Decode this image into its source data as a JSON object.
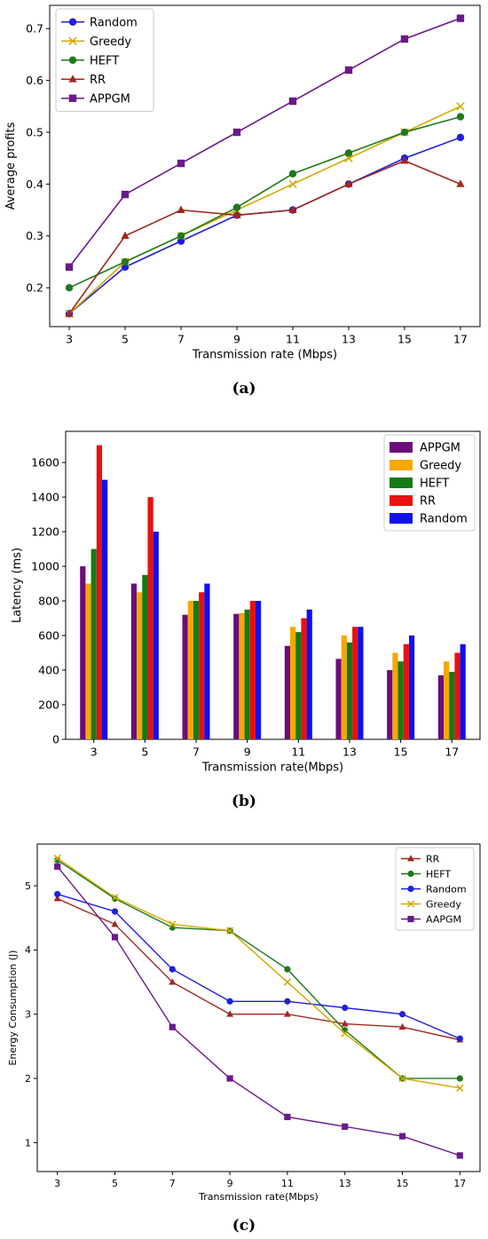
{
  "captions": [
    "(a)",
    "(b)",
    "(c)"
  ],
  "chart_data": [
    {
      "type": "line",
      "x": [
        3,
        5,
        7,
        9,
        11,
        13,
        15,
        17
      ],
      "xlabel": "Transmission rate (Mbps)",
      "ylabel": "Average profits",
      "xticks": [
        "3",
        "5",
        "7",
        "9",
        "11",
        "13",
        "15",
        "17"
      ],
      "yticks": [
        "0.2",
        "0.3",
        "0.4",
        "0.5",
        "0.6",
        "0.7"
      ],
      "ylim": [
        0.125,
        0.745
      ],
      "grid": false,
      "legend_position": "top-left",
      "series": [
        {
          "name": "Random",
          "color": "#1f1fe0",
          "marker": "circle",
          "values": [
            0.15,
            0.24,
            0.29,
            0.34,
            0.35,
            0.4,
            0.45,
            0.49
          ]
        },
        {
          "name": "Greedy",
          "color": "#d4a800",
          "marker": "x",
          "values": [
            0.15,
            0.25,
            0.3,
            0.35,
            0.4,
            0.45,
            0.5,
            0.55
          ]
        },
        {
          "name": "HEFT",
          "color": "#1e7a1e",
          "marker": "circle",
          "values": [
            0.2,
            0.25,
            0.3,
            0.355,
            0.42,
            0.46,
            0.5,
            0.53
          ]
        },
        {
          "name": "RR",
          "color": "#a0281e",
          "marker": "triangle",
          "values": [
            0.15,
            0.3,
            0.35,
            0.34,
            0.35,
            0.4,
            0.445,
            0.4
          ]
        },
        {
          "name": "APPGM",
          "color": "#6a1a8a",
          "marker": "square",
          "values": [
            0.24,
            0.38,
            0.44,
            0.5,
            0.56,
            0.62,
            0.68,
            0.72
          ]
        }
      ]
    },
    {
      "type": "bar",
      "categories": [
        "3",
        "5",
        "7",
        "9",
        "11",
        "13",
        "15",
        "17"
      ],
      "xlabel": "Transmission rate(Mbps)",
      "ylabel": "Latency (ms)",
      "yticks": [
        "0",
        "200",
        "400",
        "600",
        "800",
        "1000",
        "1200",
        "1400",
        "1600"
      ],
      "ylim": [
        0,
        1780
      ],
      "grid": false,
      "legend_position": "top-right",
      "series": [
        {
          "name": "APPGM",
          "color": "#6a0d7a",
          "values": [
            1000,
            900,
            720,
            725,
            540,
            465,
            400,
            370
          ]
        },
        {
          "name": "Greedy",
          "color": "#f5a800",
          "values": [
            900,
            850,
            800,
            730,
            650,
            600,
            500,
            450
          ]
        },
        {
          "name": "HEFT",
          "color": "#157a15",
          "values": [
            1100,
            950,
            800,
            750,
            620,
            560,
            450,
            390
          ]
        },
        {
          "name": "RR",
          "color": "#e81010",
          "values": [
            1700,
            1400,
            850,
            800,
            700,
            650,
            550,
            500
          ]
        },
        {
          "name": "Random",
          "color": "#1010ee",
          "values": [
            1500,
            1200,
            900,
            800,
            750,
            650,
            600,
            550
          ]
        }
      ]
    },
    {
      "type": "line",
      "x": [
        3,
        5,
        7,
        9,
        11,
        13,
        15,
        17
      ],
      "xlabel": "Transmission rate(Mbps)",
      "ylabel": "Energy Consumption (J)",
      "xticks": [
        "3",
        "5",
        "7",
        "9",
        "11",
        "13",
        "15",
        "17"
      ],
      "yticks": [
        "1",
        "2",
        "3",
        "4",
        "5"
      ],
      "ylim": [
        0.55,
        5.65
      ],
      "grid": false,
      "legend_position": "top-right",
      "series": [
        {
          "name": "RR",
          "color": "#a0281e",
          "marker": "triangle",
          "values": [
            4.8,
            4.4,
            3.5,
            3.0,
            3.0,
            2.85,
            2.8,
            2.6
          ]
        },
        {
          "name": "HEFT",
          "color": "#1e7a1e",
          "marker": "circle",
          "values": [
            5.4,
            4.8,
            4.35,
            4.3,
            3.7,
            2.75,
            2.0,
            2.0
          ]
        },
        {
          "name": "Random",
          "color": "#1f1fe0",
          "marker": "circle",
          "values": [
            4.87,
            4.6,
            3.7,
            3.2,
            3.2,
            3.1,
            3.0,
            2.62
          ]
        },
        {
          "name": "Greedy",
          "color": "#d4a800",
          "marker": "x",
          "values": [
            5.43,
            4.82,
            4.4,
            4.3,
            3.5,
            2.7,
            2.0,
            1.85
          ]
        },
        {
          "name": "AAPGM",
          "color": "#6a1a8a",
          "marker": "square",
          "values": [
            5.3,
            4.2,
            2.8,
            2.0,
            1.4,
            1.25,
            1.1,
            0.8
          ]
        }
      ]
    }
  ]
}
